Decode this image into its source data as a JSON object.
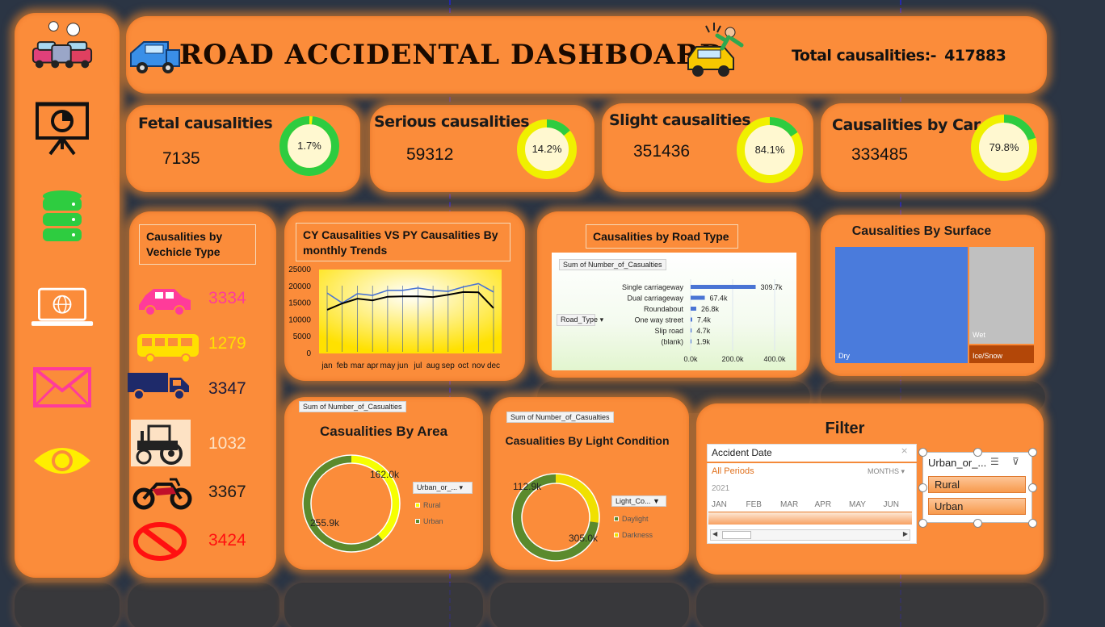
{
  "header": {
    "title": "ROAD ACCIDENTAL DASHBOARD",
    "total_label": "Total causalities:-",
    "total_value": "417883"
  },
  "sidebar": {
    "items": [
      {
        "icon": "car-crash-icon"
      },
      {
        "icon": "presentation-chart-icon"
      },
      {
        "icon": "database-icon"
      },
      {
        "icon": "laptop-globe-icon"
      },
      {
        "icon": "mail-icon"
      },
      {
        "icon": "eye-icon"
      }
    ]
  },
  "kpis": [
    {
      "label": "Fetal causalities",
      "value": "7135",
      "pct_label": "1.7%",
      "pct": 1.7
    },
    {
      "label": "Serious causalities",
      "value": "59312",
      "pct_label": "14.2%",
      "pct": 14.2
    },
    {
      "label": "Slight causalities",
      "value": "351436",
      "pct_label": "84.1%",
      "pct": 84.1
    },
    {
      "label": "Causalities by Car",
      "value": "333485",
      "pct_label": "79.8%",
      "pct": 79.8
    }
  ],
  "vehicle": {
    "title": "Causalities by Vechicle Type",
    "items": [
      {
        "icon": "car-icon",
        "value": "3334",
        "color": "#ff3b9a"
      },
      {
        "icon": "bus-icon",
        "value": "1279",
        "color": "#ffe000"
      },
      {
        "icon": "truck-icon",
        "value": "3347",
        "color": "#1a1a3a"
      },
      {
        "icon": "tractor-icon",
        "value": "1032",
        "color": "#fde2c4"
      },
      {
        "icon": "motorcycle-icon",
        "value": "3367",
        "color": "#1a1a1a"
      },
      {
        "icon": "no-entry-icon",
        "value": "3424",
        "color": "#ff1010"
      }
    ]
  },
  "trend": {
    "title": "CY Causalities VS PY Causalities By monthly Trends"
  },
  "road_type": {
    "title": "Causalities by Road Type",
    "field_chip": "Sum of Number_of_Casualties",
    "filter_chip": "Road_Type"
  },
  "surface": {
    "title": "Causalities By Surface"
  },
  "area": {
    "title": "Casualities By Area",
    "field_chip": "Sum of Number_of_Casualties",
    "legend_chip": "Urban_or_..."
  },
  "light": {
    "title": "Casualities By Light Condition",
    "field_chip": "Sum of Number_of_Casualties",
    "legend_chip": "Light_Co..."
  },
  "filter": {
    "title": "Filter",
    "timeline": {
      "label": "Accident Date",
      "period": "All Periods",
      "unit": "MONTHS",
      "year": "2021",
      "months": [
        "JAN",
        "FEB",
        "MAR",
        "APR",
        "MAY",
        "JUN"
      ]
    },
    "slicer": {
      "label": "Urban_or_...",
      "options": [
        "Rural",
        "Urban"
      ]
    }
  },
  "chart_data": [
    {
      "type": "line",
      "title": "CY Causalities VS PY Causalities By monthly Trends",
      "categories": [
        "jan",
        "feb",
        "mar",
        "apr",
        "may",
        "jun",
        "jul",
        "aug",
        "sep",
        "oct",
        "nov",
        "dec"
      ],
      "series": [
        {
          "values": [
            18000,
            15000,
            17800,
            17300,
            18800,
            18800,
            19500,
            18800,
            18500,
            19800,
            20800,
            18300
          ],
          "color": "#4a74d4"
        },
        {
          "values": [
            13000,
            14900,
            16300,
            15800,
            16900,
            17000,
            17000,
            16800,
            17500,
            18300,
            18200,
            13500
          ],
          "color": "#000000"
        }
      ],
      "ylim": [
        0,
        25000
      ],
      "yticks": [
        0,
        5000,
        10000,
        15000,
        20000,
        25000
      ]
    },
    {
      "type": "bar",
      "title": "Causalities by Road Type",
      "categories": [
        "Single carriageway",
        "Dual carriageway",
        "Roundabout",
        "One way street",
        "Slip road",
        "(blank)"
      ],
      "values": [
        309700,
        67400,
        26800,
        7400,
        4700,
        1900
      ],
      "value_labels": [
        "309.7k",
        "67.4k",
        "26.8k",
        "7.4k",
        "4.7k",
        "1.9k"
      ],
      "xticks": [
        "0.0k",
        "200.0k",
        "400.0k"
      ],
      "xlim": [
        0,
        400000
      ]
    },
    {
      "type": "heatmap",
      "title": "Causalities By Surface",
      "categories": [
        "Dry",
        "Wet",
        "Ice/Snow"
      ],
      "colors": {
        "Dry": "#4a7bdc",
        "Wet": "#c0c0c0",
        "Ice/Snow": "#b34708"
      }
    },
    {
      "type": "pie",
      "title": "Casualities By Area",
      "categories": [
        "Rural",
        "Urban"
      ],
      "values": [
        162000,
        255900
      ],
      "value_labels": [
        "162.0k",
        "255.9k"
      ],
      "colors": [
        "#f6ff00",
        "#5b8a2d"
      ]
    },
    {
      "type": "pie",
      "title": "Casualities By Light Condition",
      "categories": [
        "Daylight",
        "Darkness"
      ],
      "values": [
        305000,
        112900
      ],
      "value_labels": [
        "305.0k",
        "112.9k"
      ],
      "colors": [
        "#5b8a2d",
        "#f0e000"
      ]
    }
  ]
}
